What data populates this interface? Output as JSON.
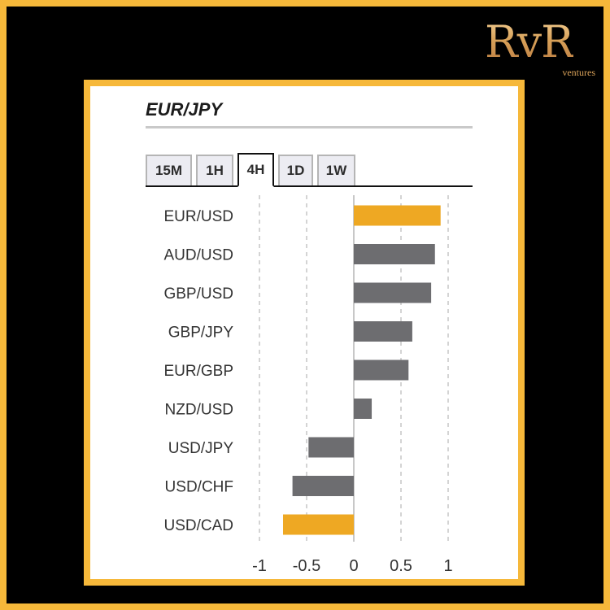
{
  "logo": {
    "main": "RvR",
    "sub": "ventures"
  },
  "title": "EUR/JPY",
  "tabs": [
    {
      "label": "15M",
      "active": false
    },
    {
      "label": "1H",
      "active": false
    },
    {
      "label": "4H",
      "active": true
    },
    {
      "label": "1D",
      "active": false
    },
    {
      "label": "1W",
      "active": false
    }
  ],
  "colors": {
    "frame": "#f6b83a",
    "highlight_bar": "#eea823",
    "normal_bar": "#6d6d70",
    "gridline": "#b8b8b8",
    "zero_line": "#c8c8c8"
  },
  "chart_data": {
    "type": "bar",
    "orientation": "horizontal",
    "categories": [
      "EUR/USD",
      "AUD/USD",
      "GBP/USD",
      "GBP/JPY",
      "EUR/GBP",
      "NZD/USD",
      "USD/JPY",
      "USD/CHF",
      "USD/CAD"
    ],
    "values": [
      0.92,
      0.86,
      0.82,
      0.62,
      0.58,
      0.19,
      -0.48,
      -0.65,
      -0.75
    ],
    "highlighted": [
      true,
      false,
      false,
      false,
      false,
      false,
      false,
      false,
      true
    ],
    "xticks": [
      -1,
      -0.5,
      0,
      0.5,
      1
    ],
    "xtick_labels": [
      "-1",
      "-0.5",
      "0",
      "0.5",
      "1"
    ],
    "xlim": [
      -1,
      1
    ],
    "grid": "vertical dashed"
  }
}
